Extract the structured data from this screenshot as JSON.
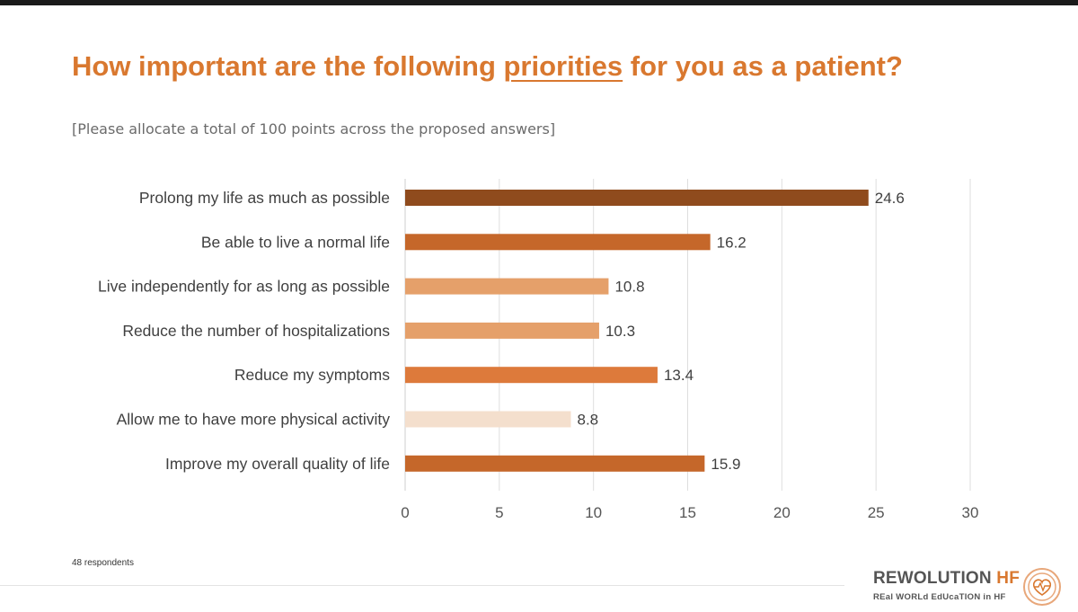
{
  "title": {
    "before": "How important are the following ",
    "highlight": "priorities",
    "after": " for you as a patient?"
  },
  "subtitle": "[Please allocate a total of 100 points across the proposed answers]",
  "footnote": "48 respondents",
  "logo": {
    "main_a": "REWOLUTION ",
    "main_b": "HF",
    "sub": "REal WORLd EdUcaTION in HF"
  },
  "chart_data": {
    "type": "bar",
    "orientation": "horizontal",
    "categories": [
      "Prolong my life as much as possible",
      "Be able to live a normal life",
      "Live independently for as long as possible",
      "Reduce the number of hospitalizations",
      "Reduce my symptoms",
      "Allow me to have more physical activity",
      "Improve my overall quality of life"
    ],
    "values": [
      24.6,
      16.2,
      10.8,
      10.3,
      13.4,
      8.8,
      15.9
    ],
    "value_labels": [
      "24.6",
      "16.2",
      "10.8",
      "10.3",
      "13.4",
      "8.8",
      "15.9"
    ],
    "colors": [
      "#8f4b1d",
      "#c5672a",
      "#e5a06a",
      "#e5a06a",
      "#dd7a3b",
      "#f4dfcd",
      "#c5672a"
    ],
    "xlim": [
      0,
      30
    ],
    "xticks": [
      0,
      5,
      10,
      15,
      20,
      25,
      30
    ],
    "grid": true,
    "legend": "none"
  }
}
